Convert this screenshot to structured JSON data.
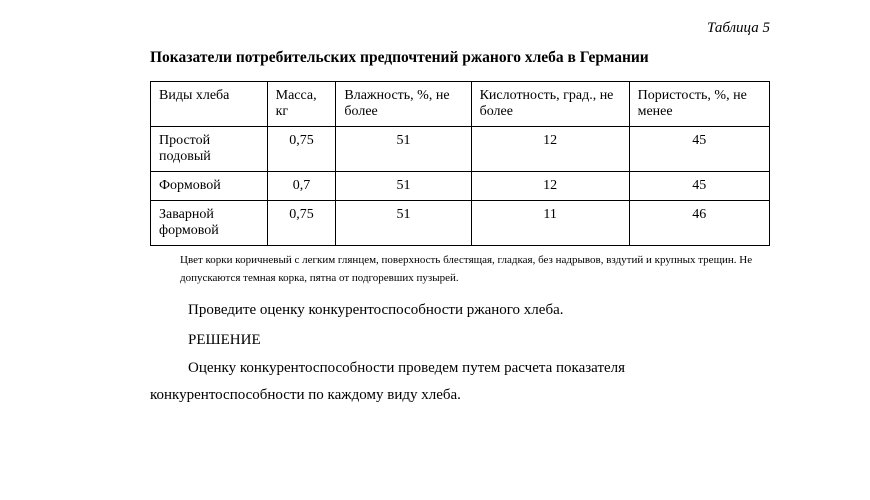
{
  "table_label": "Таблица 5",
  "title": "Показатели потребительских предпочтений ржаного хлеба в Германии",
  "table": {
    "columns": [
      "Виды хлеба",
      "Масса, кг",
      "Влажность, %, не более",
      "Кислотность, град., не более",
      "Пористость, %, не менее"
    ],
    "rows": [
      {
        "name": "Простой подовый",
        "mass": "0,75",
        "moisture": "51",
        "acidity": "12",
        "porosity": "45"
      },
      {
        "name": "Формовой",
        "mass": "0,7",
        "moisture": "51",
        "acidity": "12",
        "porosity": "45"
      },
      {
        "name": "Заварной формовой",
        "mass": "0,75",
        "moisture": "51",
        "acidity": "11",
        "porosity": "46"
      }
    ],
    "border_color": "#000000",
    "font_size": 14
  },
  "footnote": "Цвет корки коричневый с легким глянцем, поверхность блестящая, гладкая, без надрывов, вздутий и крупных трещин. Не допускаются темная корка, пятна от подгоревших пузырей.",
  "task_text": "Проведите оценку конкурентоспособности ржаного хлеба.",
  "solution_heading": "РЕШЕНИЕ",
  "solution_text": "Оценку конкурентоспособности проведем путем расчета показателя конкурентоспособности по каждому виду хлеба.",
  "colors": {
    "background": "#ffffff",
    "text": "#000000",
    "border": "#000000"
  }
}
